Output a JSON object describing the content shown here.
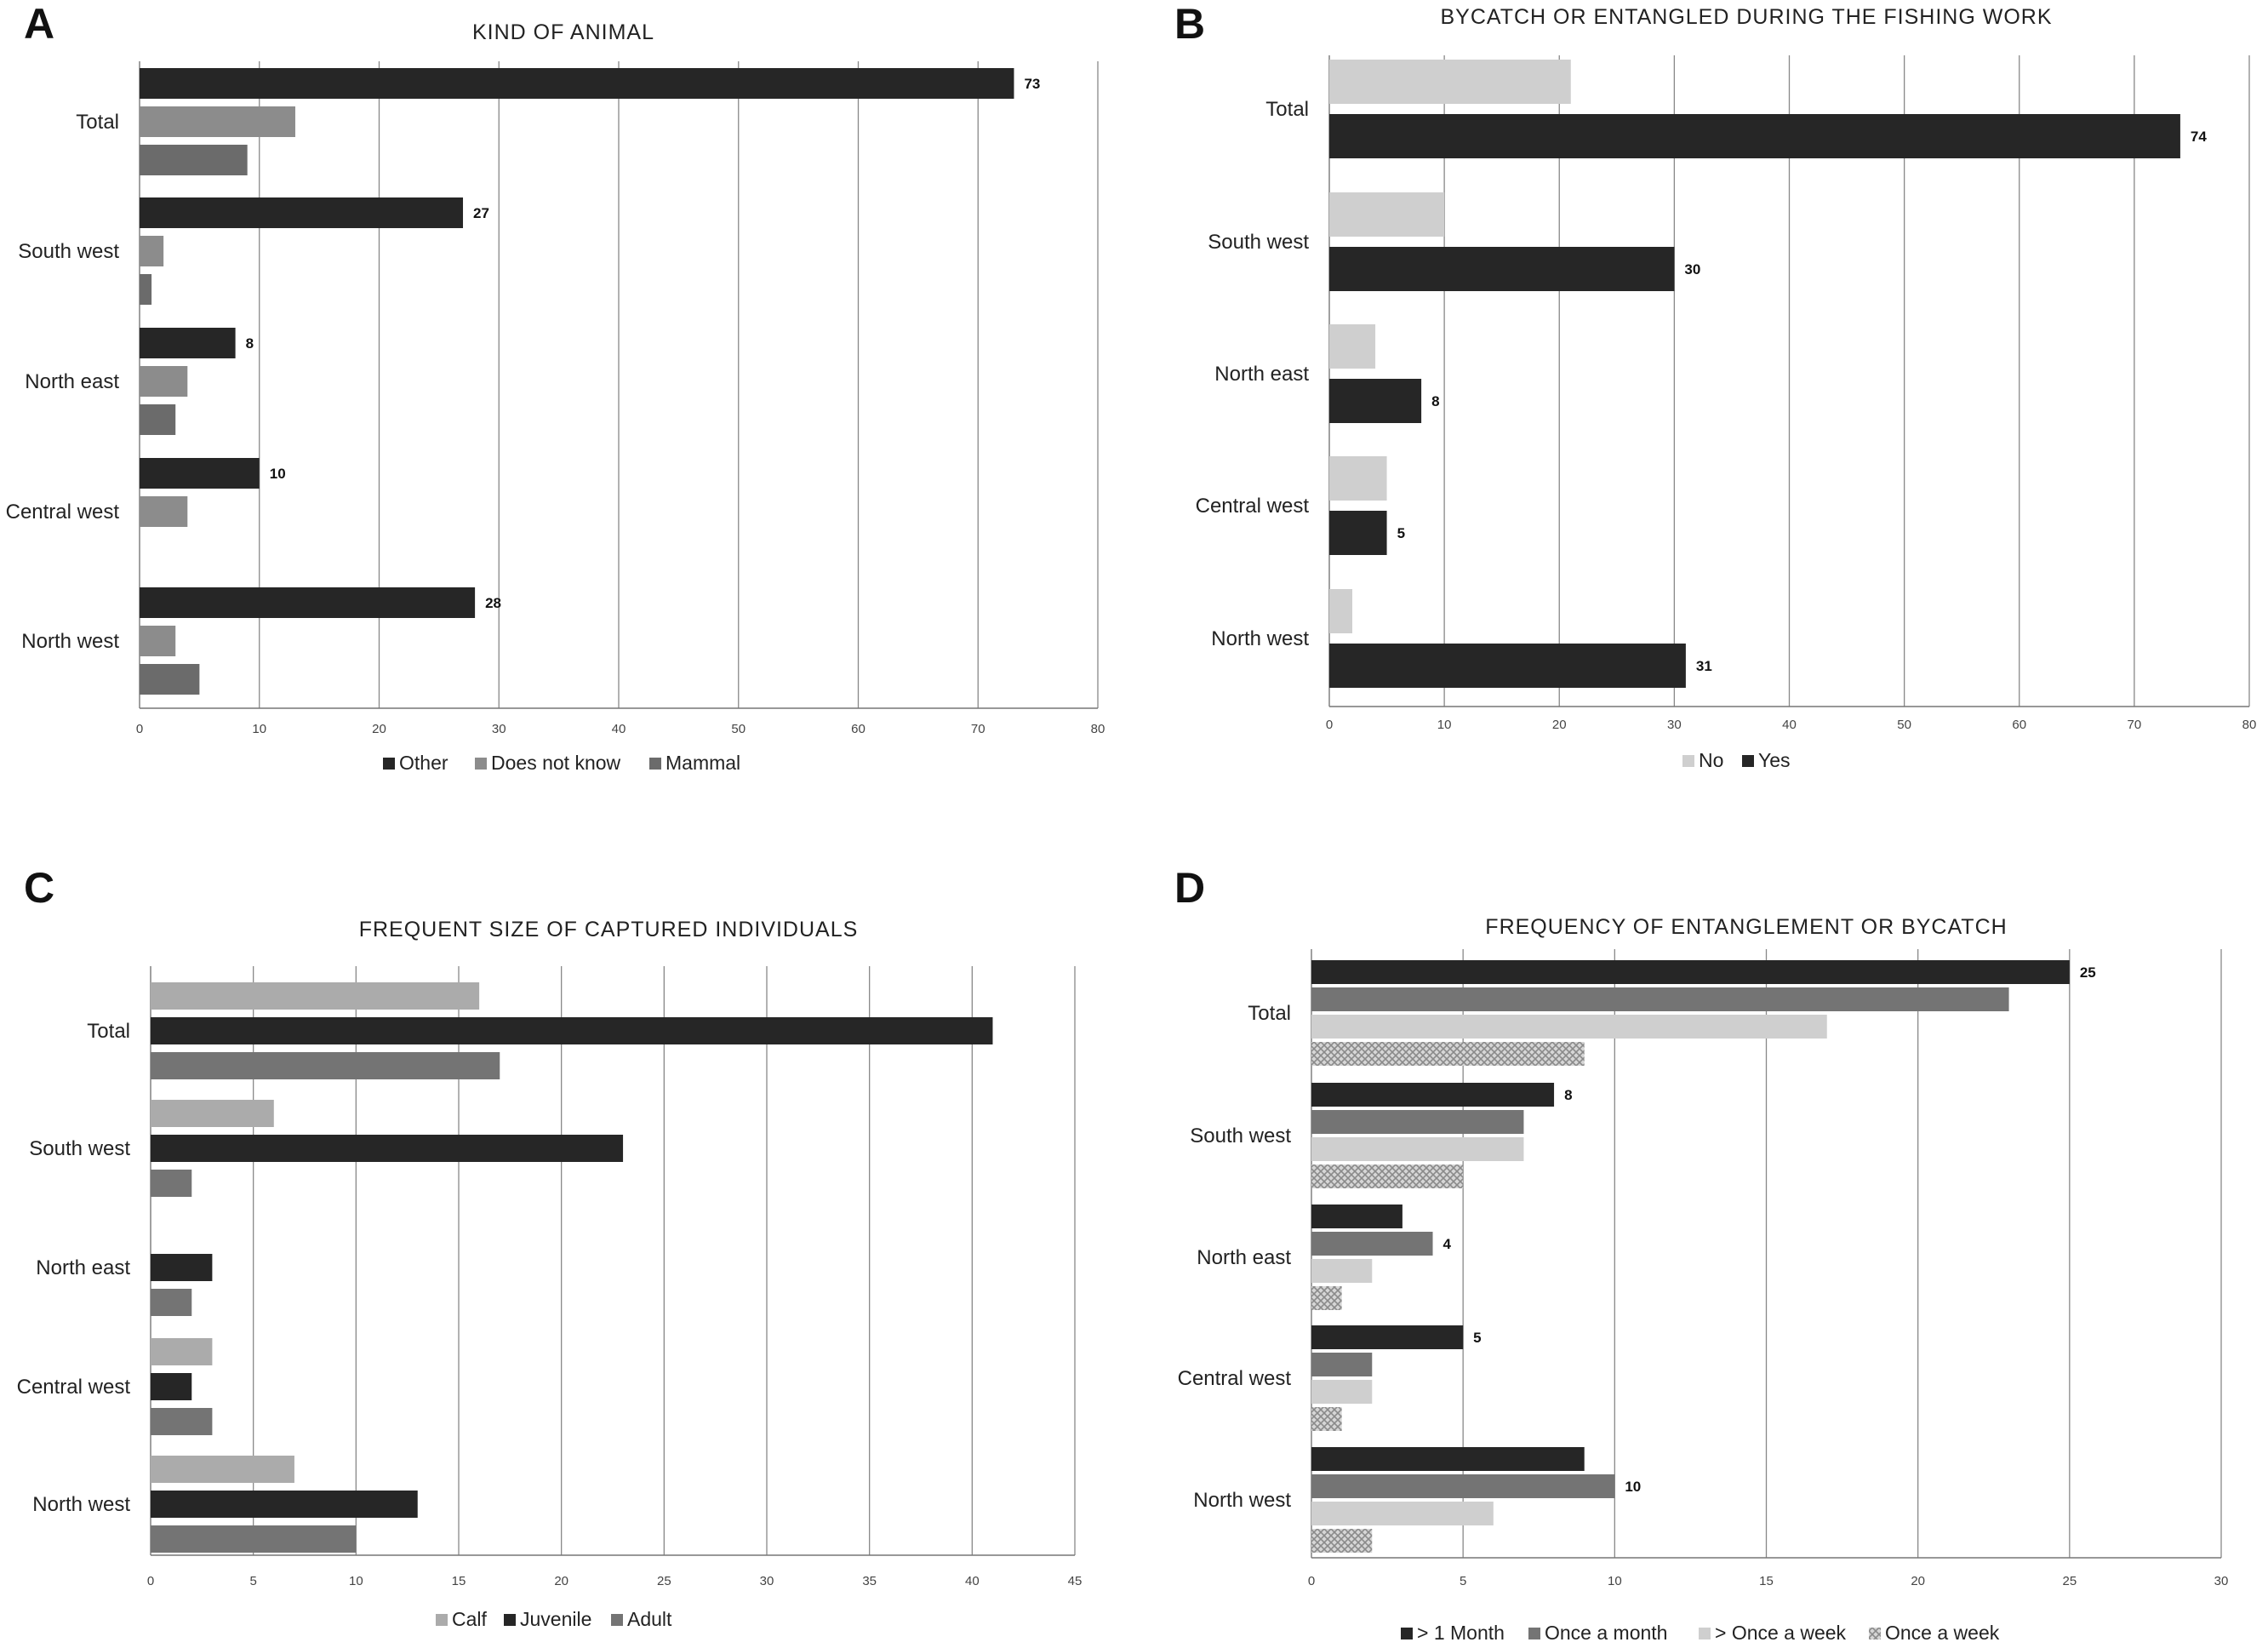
{
  "colors": {
    "other": "#262626",
    "does_not_know": "#8c8c8c",
    "mammal": "#6b6b6b",
    "no": "#cfcfcf",
    "yes": "#262626",
    "calf": "#ababab",
    "juvenile": "#262626",
    "adult": "#747474",
    "gt_1_month": "#262626",
    "once_a_month": "#747474",
    "gt_once_a_week": "#cfcfcf",
    "once_a_week": "#bdbdbd",
    "gridline": "#888888",
    "axis": "#777777"
  },
  "chart_data": [
    {
      "panel": "A",
      "type": "bar",
      "orientation": "horizontal",
      "title": "KIND OF ANIMAL",
      "categories": [
        "Total",
        "South west",
        "North east",
        "Central west",
        "North west"
      ],
      "series": [
        {
          "name": "Other",
          "color_key": "other",
          "values": [
            73,
            27,
            8,
            10,
            28
          ]
        },
        {
          "name": "Does not know",
          "color_key": "does_not_know",
          "values": [
            13,
            2,
            4,
            4,
            3
          ]
        },
        {
          "name": "Mammal",
          "color_key": "mammal",
          "values": [
            9,
            1,
            3,
            0,
            5
          ]
        }
      ],
      "labeled_series": "Other",
      "xlim": [
        0,
        80
      ],
      "xticks": [
        0,
        10,
        20,
        30,
        40,
        50,
        60,
        70,
        80
      ],
      "legend": "bottom",
      "grid": true
    },
    {
      "panel": "B",
      "type": "bar",
      "orientation": "horizontal",
      "title": "BYCATCH OR ENTANGLED DURING THE FISHING WORK",
      "categories": [
        "Total",
        "South west",
        "North east",
        "Central west",
        "North west"
      ],
      "series": [
        {
          "name": "No",
          "color_key": "no",
          "values": [
            21,
            10,
            4,
            5,
            2
          ]
        },
        {
          "name": "Yes",
          "color_key": "yes",
          "values": [
            74,
            30,
            8,
            5,
            31
          ]
        }
      ],
      "labeled_series": "Yes",
      "xlim": [
        0,
        80
      ],
      "xticks": [
        0,
        10,
        20,
        30,
        40,
        50,
        60,
        70,
        80
      ],
      "legend": "bottom",
      "grid": true
    },
    {
      "panel": "C",
      "type": "bar",
      "orientation": "horizontal",
      "title": "FREQUENT SIZE OF CAPTURED INDIVIDUALS",
      "categories": [
        "Total",
        "South west",
        "North east",
        "Central west",
        "North west"
      ],
      "series": [
        {
          "name": "Calf",
          "color_key": "calf",
          "values": [
            16,
            6,
            0,
            3,
            7
          ]
        },
        {
          "name": "Juvenile",
          "color_key": "juvenile",
          "values": [
            41,
            23,
            3,
            2,
            13
          ]
        },
        {
          "name": "Adult",
          "color_key": "adult",
          "values": [
            17,
            2,
            2,
            3,
            10
          ]
        }
      ],
      "labeled_series": null,
      "xlim": [
        0,
        45
      ],
      "xticks": [
        0,
        5,
        10,
        15,
        20,
        25,
        30,
        35,
        40,
        45
      ],
      "legend": "bottom",
      "grid": true
    },
    {
      "panel": "D",
      "type": "bar",
      "orientation": "horizontal",
      "title": "FREQUENCY OF ENTANGLEMENT OR BYCATCH",
      "categories": [
        "Total",
        "South west",
        "North east",
        "Central west",
        "North west"
      ],
      "series": [
        {
          "name": "> 1 Month",
          "color_key": "gt_1_month",
          "values": [
            25,
            8,
            3,
            5,
            9
          ]
        },
        {
          "name": "Once a month",
          "color_key": "once_a_month",
          "values": [
            23,
            7,
            4,
            2,
            10
          ]
        },
        {
          "name": "> Once a week",
          "color_key": "gt_once_a_week",
          "values": [
            17,
            7,
            2,
            2,
            6
          ]
        },
        {
          "name": "Once a week",
          "color_key": "once_a_week",
          "pattern": "crosshatch",
          "values": [
            9,
            5,
            1,
            1,
            2
          ]
        }
      ],
      "data_labels": [
        {
          "category": "Total",
          "series": "> 1 Month",
          "text": "25"
        },
        {
          "category": "South west",
          "series": "> 1 Month",
          "text": "8"
        },
        {
          "category": "North east",
          "series": "Once a month",
          "text": "4"
        },
        {
          "category": "Central west",
          "series": "> 1 Month",
          "text": "5"
        },
        {
          "category": "North west",
          "series": "Once a month",
          "text": "10"
        }
      ],
      "xlim": [
        0,
        30
      ],
      "xticks": [
        0,
        5,
        10,
        15,
        20,
        25,
        30
      ],
      "legend": "bottom",
      "grid": true
    }
  ]
}
